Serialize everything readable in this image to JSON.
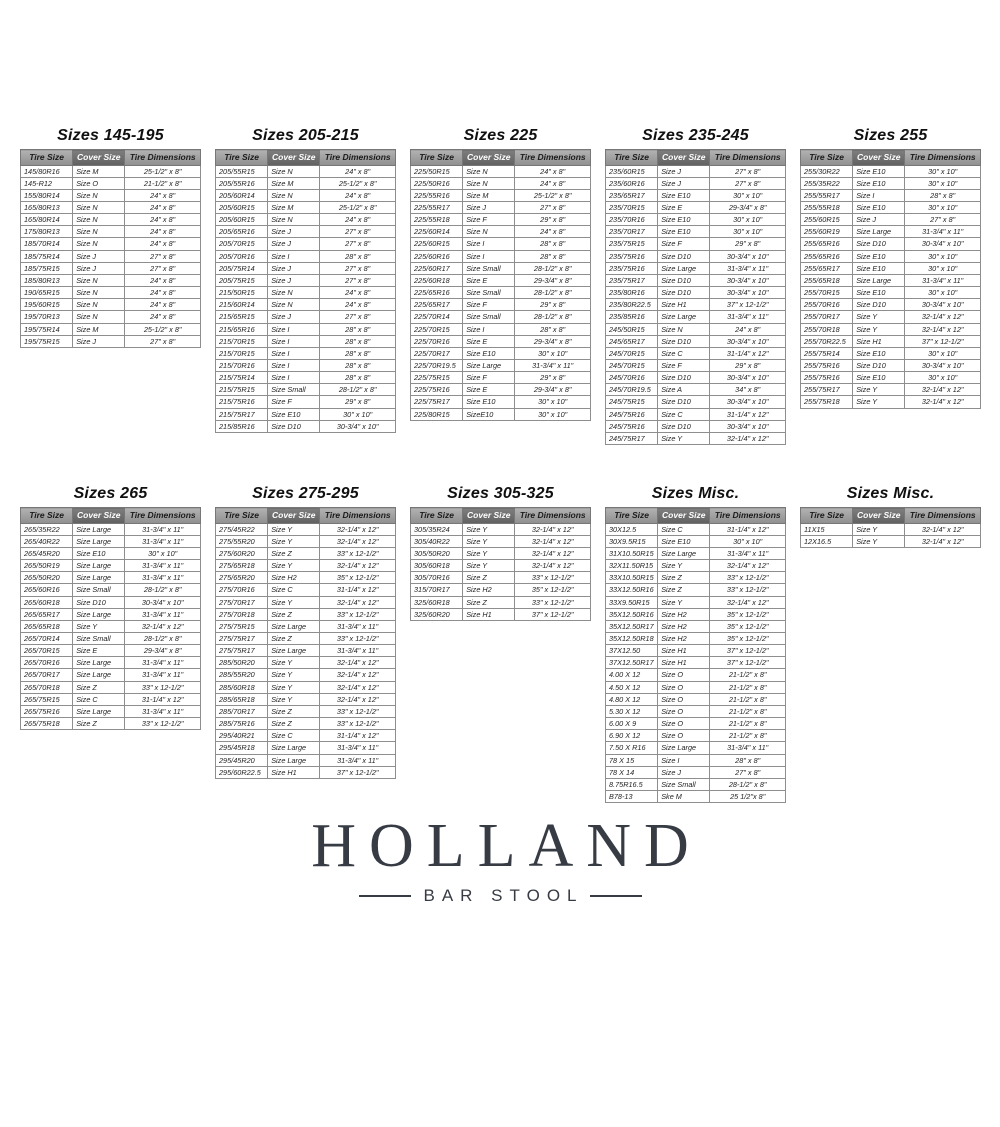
{
  "columns": [
    "Tire Size",
    "Cover Size",
    "Tire Dimensions"
  ],
  "colors": {
    "header_bg": "#9c9c9c",
    "header_accent_bg": "#6e6e6e",
    "header_text": "#1b1b1b",
    "header_accent_text": "#ffffff",
    "cell_text": "#242424",
    "border": "#8e8e8e",
    "logo_color": "#363b44"
  },
  "tables": [
    {
      "title": "Sizes 145-195",
      "rows": [
        [
          "145/80R16",
          "Size M",
          "25-1/2\" x 8\""
        ],
        [
          "145-R12",
          "Size O",
          "21-1/2\" x 8\""
        ],
        [
          "155/80R14",
          "Size N",
          "24\" x 8\""
        ],
        [
          "165/80R13",
          "Size N",
          "24\" x 8\""
        ],
        [
          "165/80R14",
          "Size N",
          "24\" x 8\""
        ],
        [
          "175/80R13",
          "Size N",
          "24\" x 8\""
        ],
        [
          "185/70R14",
          "Size N",
          "24\" x 8\""
        ],
        [
          "185/75R14",
          "Size J",
          "27\" x 8\""
        ],
        [
          "185/75R15",
          "Size J",
          "27\" x 8\""
        ],
        [
          "185/80R13",
          "Size N",
          "24\" x 8\""
        ],
        [
          "190/65R15",
          "Size N",
          "24\" x 8\""
        ],
        [
          "195/60R15",
          "Size N",
          "24\" x 8\""
        ],
        [
          "195/70R13",
          "Size N",
          "24\" x 8\""
        ],
        [
          "195/75R14",
          "Size M",
          "25-1/2\" x 8\""
        ],
        [
          "195/75R15",
          "Size J",
          "27\" x 8\""
        ]
      ]
    },
    {
      "title": "Sizes 205-215",
      "rows": [
        [
          "205/55R15",
          "Size N",
          "24\" x 8\""
        ],
        [
          "205/55R16",
          "Size M",
          "25-1/2\" x 8\""
        ],
        [
          "205/60R14",
          "Size N",
          "24\" x 8\""
        ],
        [
          "205/60R15",
          "Size M",
          "25-1/2\" x 8\""
        ],
        [
          "205/60R15",
          "Size N",
          "24\" x 8\""
        ],
        [
          "205/65R16",
          "Size J",
          "27\" x 8\""
        ],
        [
          "205/70R15",
          "Size J",
          "27\" x 8\""
        ],
        [
          "205/70R16",
          "Size I",
          "28\" x 8\""
        ],
        [
          "205/75R14",
          "Size J",
          "27\" x 8\""
        ],
        [
          "205/75R15",
          "Size J",
          "27\" x 8\""
        ],
        [
          "215/50R15",
          "Size N",
          "24\" x 8\""
        ],
        [
          "215/60R14",
          "Size N",
          "24\" x 8\""
        ],
        [
          "215/65R15",
          "Size J",
          "27\" x 8\""
        ],
        [
          "215/65R16",
          "Size I",
          "28\" x 8\""
        ],
        [
          "215/70R15",
          "Size I",
          "28\" x 8\""
        ],
        [
          "215/70R15",
          "Size I",
          "28\" x 8\""
        ],
        [
          "215/70R16",
          "Size I",
          "28\" x 8\""
        ],
        [
          "215/75R14",
          "Size I",
          "28\" x 8\""
        ],
        [
          "215/75R15",
          "Size Small",
          "28-1/2\" x 8\""
        ],
        [
          "215/75R16",
          "Size F",
          "29\" x 8\""
        ],
        [
          "215/75R17",
          "Size E10",
          "30\" x 10\""
        ],
        [
          "215/85R16",
          "Size D10",
          "30-3/4\" x 10\""
        ]
      ]
    },
    {
      "title": "Sizes 225",
      "rows": [
        [
          "225/50R15",
          "Size N",
          "24\" x 8\""
        ],
        [
          "225/50R16",
          "Size N",
          "24\" x 8\""
        ],
        [
          "225/55R16",
          "Size M",
          "25-1/2\" x 8\""
        ],
        [
          "225/55R17",
          "Size J",
          "27\" x 8\""
        ],
        [
          "225/55R18",
          "Size F",
          "29\" x 8\""
        ],
        [
          "225/60R14",
          "Size N",
          "24\" x 8\""
        ],
        [
          "225/60R15",
          "Size I",
          "28\" x 8\""
        ],
        [
          "225/60R16",
          "Size I",
          "28\" x 8\""
        ],
        [
          "225/60R17",
          "Size Small",
          "28-1/2\" x 8\""
        ],
        [
          "225/60R18",
          "Size E",
          "29-3/4\" x 8\""
        ],
        [
          "225/65R16",
          "Size Small",
          "28-1/2\" x 8\""
        ],
        [
          "225/65R17",
          "Size F",
          "29\" x 8\""
        ],
        [
          "225/70R14",
          "Size Small",
          "28-1/2\" x 8\""
        ],
        [
          "225/70R15",
          "Size I",
          "28\" x 8\""
        ],
        [
          "225/70R16",
          "Size E",
          "29-3/4\" x 8\""
        ],
        [
          "225/70R17",
          "Size E10",
          "30\" x 10\""
        ],
        [
          "225/70R19.5",
          "Size Large",
          "31-3/4\" x 11\""
        ],
        [
          "225/75R15",
          "Size F",
          "29\" x 8\""
        ],
        [
          "225/75R16",
          "Size E",
          "29-3/4\" x 8\""
        ],
        [
          "225/75R17",
          "Size E10",
          "30\" x 10\""
        ],
        [
          "225/80R15",
          "SizeE10",
          "30\" x 10\""
        ]
      ]
    },
    {
      "title": "Sizes 235-245",
      "rows": [
        [
          "235/60R15",
          "Size J",
          "27\" x 8\""
        ],
        [
          "235/60R16",
          "Size J",
          "27\" x 8\""
        ],
        [
          "235/65R17",
          "Size E10",
          "30\" x 10\""
        ],
        [
          "235/70R15",
          "Size E",
          "29-3/4\" x 8\""
        ],
        [
          "235/70R16",
          "Size E10",
          "30\" x 10\""
        ],
        [
          "235/70R17",
          "Size E10",
          "30\" x 10\""
        ],
        [
          "235/75R15",
          "Size F",
          "29\" x 8\""
        ],
        [
          "235/75R16",
          "Size D10",
          "30-3/4\" x 10\""
        ],
        [
          "235/75R16",
          "Size Large",
          "31-3/4\" x 11\""
        ],
        [
          "235/75R17",
          "Size D10",
          "30-3/4\" x 10\""
        ],
        [
          "235/80R16",
          "Size D10",
          "30-3/4\" x 10\""
        ],
        [
          "235/80R22.5",
          "Size H1",
          "37\" x 12-1/2\""
        ],
        [
          "235/85R16",
          "Size Large",
          "31-3/4\" x 11\""
        ],
        [
          "245/50R15",
          "Size N",
          "24\" x 8\""
        ],
        [
          "245/65R17",
          "Size D10",
          "30-3/4\" x 10\""
        ],
        [
          "245/70R15",
          "Size C",
          "31-1/4\" x 12\""
        ],
        [
          "245/70R15",
          "Size F",
          "29\" x 8\""
        ],
        [
          "245/70R16",
          "Size D10",
          "30-3/4\" x 10\""
        ],
        [
          "245/70R19.5",
          "Size A",
          "34\" x 8\""
        ],
        [
          "245/75R15",
          "Size D10",
          "30-3/4\" x 10\""
        ],
        [
          "245/75R16",
          "Size C",
          "31-1/4\" x 12\""
        ],
        [
          "245/75R16",
          "Size D10",
          "30-3/4\" x 10\""
        ],
        [
          "245/75R17",
          "Size Y",
          "32-1/4\" x 12\""
        ]
      ]
    },
    {
      "title": "Sizes 255",
      "rows": [
        [
          "255/30R22",
          "Size E10",
          "30\" x 10\""
        ],
        [
          "255/35R22",
          "Size E10",
          "30\" x 10\""
        ],
        [
          "255/55R17",
          "Size I",
          "28\" x 8\""
        ],
        [
          "255/55R18",
          "Size E10",
          "30\" x 10\""
        ],
        [
          "255/60R15",
          "Size J",
          "27\" x 8\""
        ],
        [
          "255/60R19",
          "Size Large",
          "31-3/4\" x 11\""
        ],
        [
          "255/65R16",
          "Size D10",
          "30-3/4\" x 10\""
        ],
        [
          "255/65R16",
          "Size E10",
          "30\" x 10\""
        ],
        [
          "255/65R17",
          "Size E10",
          "30\" x 10\""
        ],
        [
          "255/65R18",
          "Size Large",
          "31-3/4\" x 11\""
        ],
        [
          "255/70R15",
          "Size E10",
          "30\" x 10\""
        ],
        [
          "255/70R16",
          "Size D10",
          "30-3/4\" x 10\""
        ],
        [
          "255/70R17",
          "Size Y",
          "32-1/4\" x 12\""
        ],
        [
          "255/70R18",
          "Size Y",
          "32-1/4\" x 12\""
        ],
        [
          "255/70R22.5",
          "Size H1",
          "37\" x 12-1/2\""
        ],
        [
          "255/75R14",
          "Size E10",
          "30\" x 10\""
        ],
        [
          "255/75R16",
          "Size D10",
          "30-3/4\" x 10\""
        ],
        [
          "255/75R16",
          "Size E10",
          "30\" x 10\""
        ],
        [
          "255/75R17",
          "Size Y",
          "32-1/4\" x 12\""
        ],
        [
          "255/75R18",
          "Size Y",
          "32-1/4\" x 12\""
        ]
      ]
    },
    {
      "title": "Sizes 265",
      "rows": [
        [
          "265/35R22",
          "Size Large",
          "31-3/4\" x 11\""
        ],
        [
          "265/40R22",
          "Size Large",
          "31-3/4\" x 11\""
        ],
        [
          "265/45R20",
          "Size E10",
          "30\" x 10\""
        ],
        [
          "265/50R19",
          "Size Large",
          "31-3/4\" x 11\""
        ],
        [
          "265/50R20",
          "Size Large",
          "31-3/4\" x 11\""
        ],
        [
          "265/60R16",
          "Size Small",
          "28-1/2\" x 8\""
        ],
        [
          "265/60R18",
          "Size D10",
          "30-3/4\" x 10\""
        ],
        [
          "265/65R17",
          "Size Large",
          "31-3/4\" x 11\""
        ],
        [
          "265/65R18",
          "Size Y",
          "32-1/4\" x 12\""
        ],
        [
          "265/70R14",
          "Size Small",
          "28-1/2\" x 8\""
        ],
        [
          "265/70R15",
          "Size E",
          "29-3/4\" x 8\""
        ],
        [
          "265/70R16",
          "Size Large",
          "31-3/4\" x 11\""
        ],
        [
          "265/70R17",
          "Size Large",
          "31-3/4\" x 11\""
        ],
        [
          "265/70R18",
          "Size Z",
          "33\" x 12-1/2\""
        ],
        [
          "265/75R15",
          "Size C",
          "31-1/4\" x 12\""
        ],
        [
          "265/75R16",
          "Size Large",
          "31-3/4\" x 11\""
        ],
        [
          "265/75R18",
          "Size Z",
          "33\" x 12-1/2\""
        ]
      ]
    },
    {
      "title": "Sizes 275-295",
      "rows": [
        [
          "275/45R22",
          "Size Y",
          "32-1/4\" x 12\""
        ],
        [
          "275/55R20",
          "Size Y",
          "32-1/4\" x 12\""
        ],
        [
          "275/60R20",
          "Size Z",
          "33\" x 12-1/2\""
        ],
        [
          "275/65R18",
          "Size Y",
          "32-1/4\" x 12\""
        ],
        [
          "275/65R20",
          "Size H2",
          "35\" x 12-1/2\""
        ],
        [
          "275/70R16",
          "Size C",
          "31-1/4\" x 12\""
        ],
        [
          "275/70R17",
          "Size Y",
          "32-1/4\" x 12\""
        ],
        [
          "275/70R18",
          "Size Z",
          "33\" x 12-1/2\""
        ],
        [
          "275/75R15",
          "Size Large",
          "31-3/4\" x 11\""
        ],
        [
          "275/75R17",
          "Size Z",
          "33\" x 12-1/2\""
        ],
        [
          "275/75R17",
          "Size Large",
          "31-3/4\" x 11\""
        ],
        [
          "285/50R20",
          "Size Y",
          "32-1/4\" x 12\""
        ],
        [
          "285/55R20",
          "Size Y",
          "32-1/4\" x 12\""
        ],
        [
          "285/60R18",
          "Size Y",
          "32-1/4\" x 12\""
        ],
        [
          "285/65R18",
          "Size Y",
          "32-1/4\" x 12\""
        ],
        [
          "285/70R17",
          "Size Z",
          "33\" x 12-1/2\""
        ],
        [
          "285/75R16",
          "Size Z",
          "33\" x 12-1/2\""
        ],
        [
          "295/40R21",
          "Size C",
          "31-1/4\" x 12\""
        ],
        [
          "295/45R18",
          "Size Large",
          "31-3/4\" x 11\""
        ],
        [
          "295/45R20",
          "Size Large",
          "31-3/4\" x 11\""
        ],
        [
          "295/60R22.5",
          "Size H1",
          "37\" x 12-1/2\""
        ]
      ]
    },
    {
      "title": "Sizes 305-325",
      "rows": [
        [
          "305/35R24",
          "Size Y",
          "32-1/4\" x 12\""
        ],
        [
          "305/40R22",
          "Size Y",
          "32-1/4\" x 12\""
        ],
        [
          "305/50R20",
          "Size Y",
          "32-1/4\" x 12\""
        ],
        [
          "305/60R18",
          "Size Y",
          "32-1/4\" x 12\""
        ],
        [
          "305/70R16",
          "Size Z",
          "33\" x 12-1/2\""
        ],
        [
          "315/70R17",
          "Size H2",
          "35\" x 12-1/2\""
        ],
        [
          "325/60R18",
          "Size Z",
          "33\" x 12-1/2\""
        ],
        [
          "325/60R20",
          "Size H1",
          "37\" x 12-1/2\""
        ]
      ]
    },
    {
      "title": "Sizes Misc.",
      "rows": [
        [
          "30X12.5",
          "Size C",
          "31-1/4\" x 12\""
        ],
        [
          "30X9.5R15",
          "Size E10",
          "30\" x 10\""
        ],
        [
          "31X10.50R15",
          "Size Large",
          "31-3/4\" x 11\""
        ],
        [
          "32X11.50R15",
          "Size Y",
          "32-1/4\" x 12\""
        ],
        [
          "33X10.50R15",
          "Size Z",
          "33\" x 12-1/2\""
        ],
        [
          "33X12.50R16",
          "Size Z",
          "33\" x 12-1/2\""
        ],
        [
          "33X9.50R15",
          "Size Y",
          "32-1/4\" x 12\""
        ],
        [
          "35X12.50R16",
          "Size H2",
          "35\" x 12-1/2\""
        ],
        [
          "35X12.50R17",
          "Size H2",
          "35\" x 12-1/2\""
        ],
        [
          "35X12.50R18",
          "Size H2",
          "35\" x 12-1/2\""
        ],
        [
          "37X12.50",
          "Size H1",
          "37\" x 12-1/2\""
        ],
        [
          "37X12.50R17",
          "Size H1",
          "37\" x 12-1/2\""
        ],
        [
          "4.00 X 12",
          "Size O",
          "21-1/2\" x 8\""
        ],
        [
          "4.50 X 12",
          "Size O",
          "21-1/2\" x 8\""
        ],
        [
          "4.80 X 12",
          "Size O",
          "21-1/2\" x 8\""
        ],
        [
          "5.30 X 12",
          "Size O",
          "21-1/2\" x 8\""
        ],
        [
          "6.00 X 9",
          "Size O",
          "21-1/2\" x 8\""
        ],
        [
          "6.90 X 12",
          "Size O",
          "21-1/2\" x 8\""
        ],
        [
          "7.50 X R16",
          "Size Large",
          "31-3/4\" x 11\""
        ],
        [
          "78 X 15",
          "Size I",
          "28\" x 8\""
        ],
        [
          "78 X 14",
          "Size J",
          "27\" x 8\""
        ],
        [
          "8.75R16.5",
          "Size Small",
          "28-1/2\" x 8\""
        ],
        [
          "B78-13",
          "Ske M",
          "25 1/2\"x 8\""
        ]
      ]
    },
    {
      "title": "Sizes Misc.",
      "rows": [
        [
          "11X15",
          "Size Y",
          "32-1/4\" x 12\""
        ],
        [
          "12X16.5",
          "Size Y",
          "32-1/4\" x 12\""
        ]
      ]
    }
  ],
  "logo": {
    "name": "HOLLAND",
    "tagline": "BAR STOOL"
  }
}
